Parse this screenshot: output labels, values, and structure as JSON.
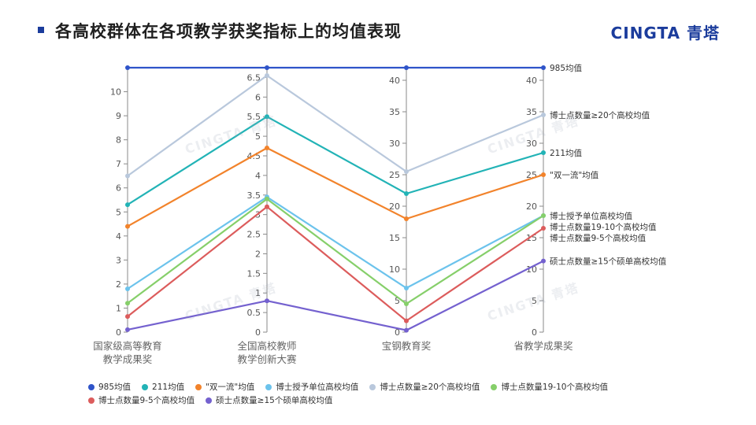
{
  "header": {
    "title": "各高校群体在各项教学获奖指标上的均值表现",
    "logo": "CINGTA 青塔"
  },
  "watermark_text": "CINGTA 青塔",
  "chart_data": {
    "type": "parallel-line",
    "axes": [
      {
        "label": [
          "国家级高等教育",
          "教学成果奖"
        ],
        "ylim": [
          0,
          11
        ],
        "ticks": [
          0,
          1,
          2,
          3,
          4,
          5,
          6,
          7,
          8,
          9,
          10
        ],
        "tick_side": "left"
      },
      {
        "label": [
          "全国高校教师",
          "教学创新大赛"
        ],
        "ylim": [
          0,
          6.75
        ],
        "ticks": [
          0,
          0.5,
          1,
          1.5,
          2,
          2.5,
          3,
          3.5,
          4,
          4.5,
          5,
          5.5,
          6,
          6.5
        ],
        "tick_side": "left"
      },
      {
        "label": [
          "宝钢教育奖"
        ],
        "ylim": [
          0,
          42
        ],
        "ticks": [
          0,
          5,
          10,
          15,
          20,
          25,
          30,
          35,
          40
        ],
        "tick_side": "left"
      },
      {
        "label": [
          "省教学成果奖"
        ],
        "ylim": [
          0,
          42
        ],
        "ticks": [
          0,
          5,
          10,
          15,
          20,
          25,
          30,
          35,
          40
        ],
        "tick_side": "left"
      }
    ],
    "legend_position": "bottom",
    "series": [
      {
        "name": "985均值",
        "end_label": "985均值",
        "color": "#2f54c9",
        "values": [
          11,
          6.75,
          42,
          42
        ]
      },
      {
        "name": "211均值",
        "end_label": "211均值",
        "color": "#22b3b6",
        "values": [
          5.3,
          5.5,
          22,
          28.5
        ]
      },
      {
        "name": "\"双一流\"均值",
        "end_label": "\"双一流\"均值",
        "color": "#f2832b",
        "values": [
          4.4,
          4.7,
          18,
          25
        ]
      },
      {
        "name": "博士授予单位高校均值",
        "end_label": "博士授予单位高校均值",
        "color": "#6cc3ec",
        "values": [
          1.8,
          3.45,
          7,
          18.5
        ]
      },
      {
        "name": "博士点数量≥20个高校均值",
        "end_label": "博士点数量≥20个高校均值",
        "color": "#b9c8dc",
        "values": [
          6.5,
          6.55,
          25.5,
          34.5
        ]
      },
      {
        "name": "博士点数量19-10个高校均值",
        "end_label": "博士点数量19-10个高校均值",
        "color": "#86cf6a",
        "values": [
          1.2,
          3.4,
          4.5,
          18.5
        ]
      },
      {
        "name": "博士点数量9-5个高校均值",
        "end_label": "博士点数量9-5个高校均值",
        "color": "#dc5c5c",
        "values": [
          0.65,
          3.2,
          1.8,
          16.5
        ]
      },
      {
        "name": "硕士点数量≥15个硕单高校均值",
        "end_label": "硕士点数量≥15个硕单高校均值",
        "color": "#7461cf",
        "values": [
          0.1,
          0.8,
          0.3,
          11.3
        ]
      }
    ]
  }
}
